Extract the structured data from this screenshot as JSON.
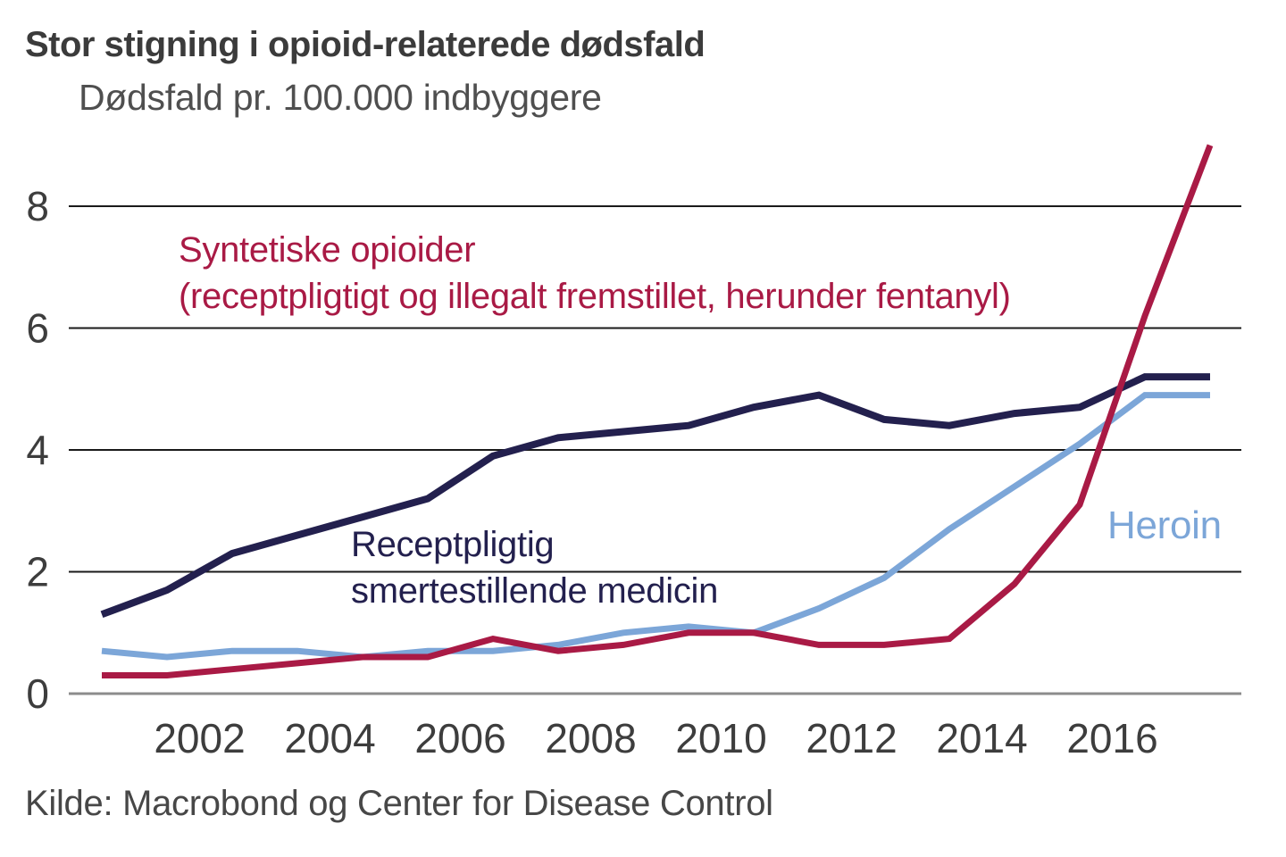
{
  "header": {
    "title": "Stor stigning i opioid-relaterede dødsfald",
    "subtitle": "Dødsfald pr. 100.000 indbyggere"
  },
  "source": "Kilde: Macrobond og Center for Disease Control",
  "annotations": {
    "synthetic": {
      "lines": [
        "Syntetiske opioider",
        "(receptpligtigt og illegalt fremstillet, herunder fentanyl)"
      ],
      "color": "#A91A45"
    },
    "prescription": {
      "lines": [
        "Receptpligtig",
        "smertestillende medicin"
      ],
      "color": "#23204E"
    },
    "heroin": {
      "lines": [
        "Heroin"
      ],
      "color": "#7CA6D8"
    }
  },
  "chart_data": {
    "type": "line",
    "title": "Stor stigning i opioid-relaterede dødsfald",
    "subtitle": "Dødsfald pr. 100.000 indbyggere",
    "xlabel": "",
    "ylabel": "Dødsfald pr. 100.000 indbyggere",
    "x": [
      2000,
      2001,
      2002,
      2003,
      2004,
      2005,
      2006,
      2007,
      2008,
      2009,
      2010,
      2011,
      2012,
      2013,
      2014,
      2015,
      2016,
      2017
    ],
    "xticks": [
      2002,
      2004,
      2006,
      2008,
      2010,
      2012,
      2014,
      2016
    ],
    "yticks": [
      0,
      2,
      4,
      6,
      8
    ],
    "ylim": [
      0,
      9.2
    ],
    "grid": "horizontal",
    "legend_position": "inline-annotations",
    "series": [
      {
        "id": "prescription",
        "name": "Receptpligtig smertestillende medicin",
        "color": "#23204E",
        "values": [
          1.3,
          1.7,
          2.3,
          2.6,
          2.9,
          3.2,
          3.9,
          4.2,
          4.3,
          4.4,
          4.7,
          4.9,
          4.5,
          4.4,
          4.6,
          4.7,
          5.2,
          5.2
        ]
      },
      {
        "id": "heroin",
        "name": "Heroin",
        "color": "#7CA6D8",
        "values": [
          0.7,
          0.6,
          0.7,
          0.7,
          0.6,
          0.7,
          0.7,
          0.8,
          1.0,
          1.1,
          1.0,
          1.4,
          1.9,
          2.7,
          3.4,
          4.1,
          4.9,
          4.9
        ]
      },
      {
        "id": "synthetic",
        "name": "Syntetiske opioider (receptpligtigt og illegalt fremstillet, herunder fentanyl)",
        "color": "#A91A45",
        "values": [
          0.3,
          0.3,
          0.4,
          0.5,
          0.6,
          0.6,
          0.9,
          0.7,
          0.8,
          1.0,
          1.0,
          0.8,
          0.8,
          0.9,
          1.8,
          3.1,
          6.2,
          9.0
        ]
      }
    ]
  }
}
